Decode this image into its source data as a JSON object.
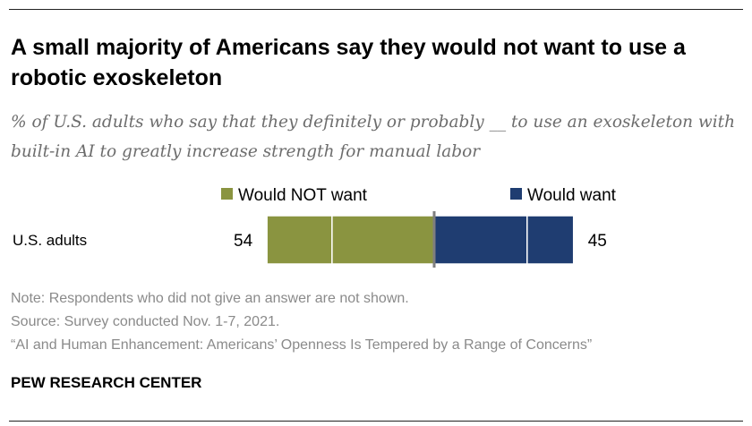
{
  "title": "A small majority of Americans say they would not want to use a robotic exoskeleton",
  "subtitle": "% of U.S. adults who say that they definitely or probably __ to use an exoskeleton with built-in AI to greatly increase strength for manual labor",
  "chart_data": {
    "type": "bar",
    "orientation": "horizontal-diverging-stacked",
    "categories": [
      "U.S. adults"
    ],
    "series": [
      {
        "name": "Would NOT want",
        "values": [
          54
        ],
        "segments": [
          21,
          33
        ],
        "color": "#8a9440"
      },
      {
        "name": "Would want",
        "values": [
          45
        ],
        "segments": [
          30,
          15
        ],
        "color": "#1f3d71"
      }
    ],
    "legend": "top",
    "grid": false
  },
  "notes": {
    "note": "Note: Respondents who did not give an answer are not shown.",
    "source": "Source: Survey conducted Nov. 1-7, 2021.",
    "report": "“AI and Human Enhancement: Americans’ Openness Is Tempered by a Range of Concerns”"
  },
  "brand": "PEW RESEARCH CENTER"
}
